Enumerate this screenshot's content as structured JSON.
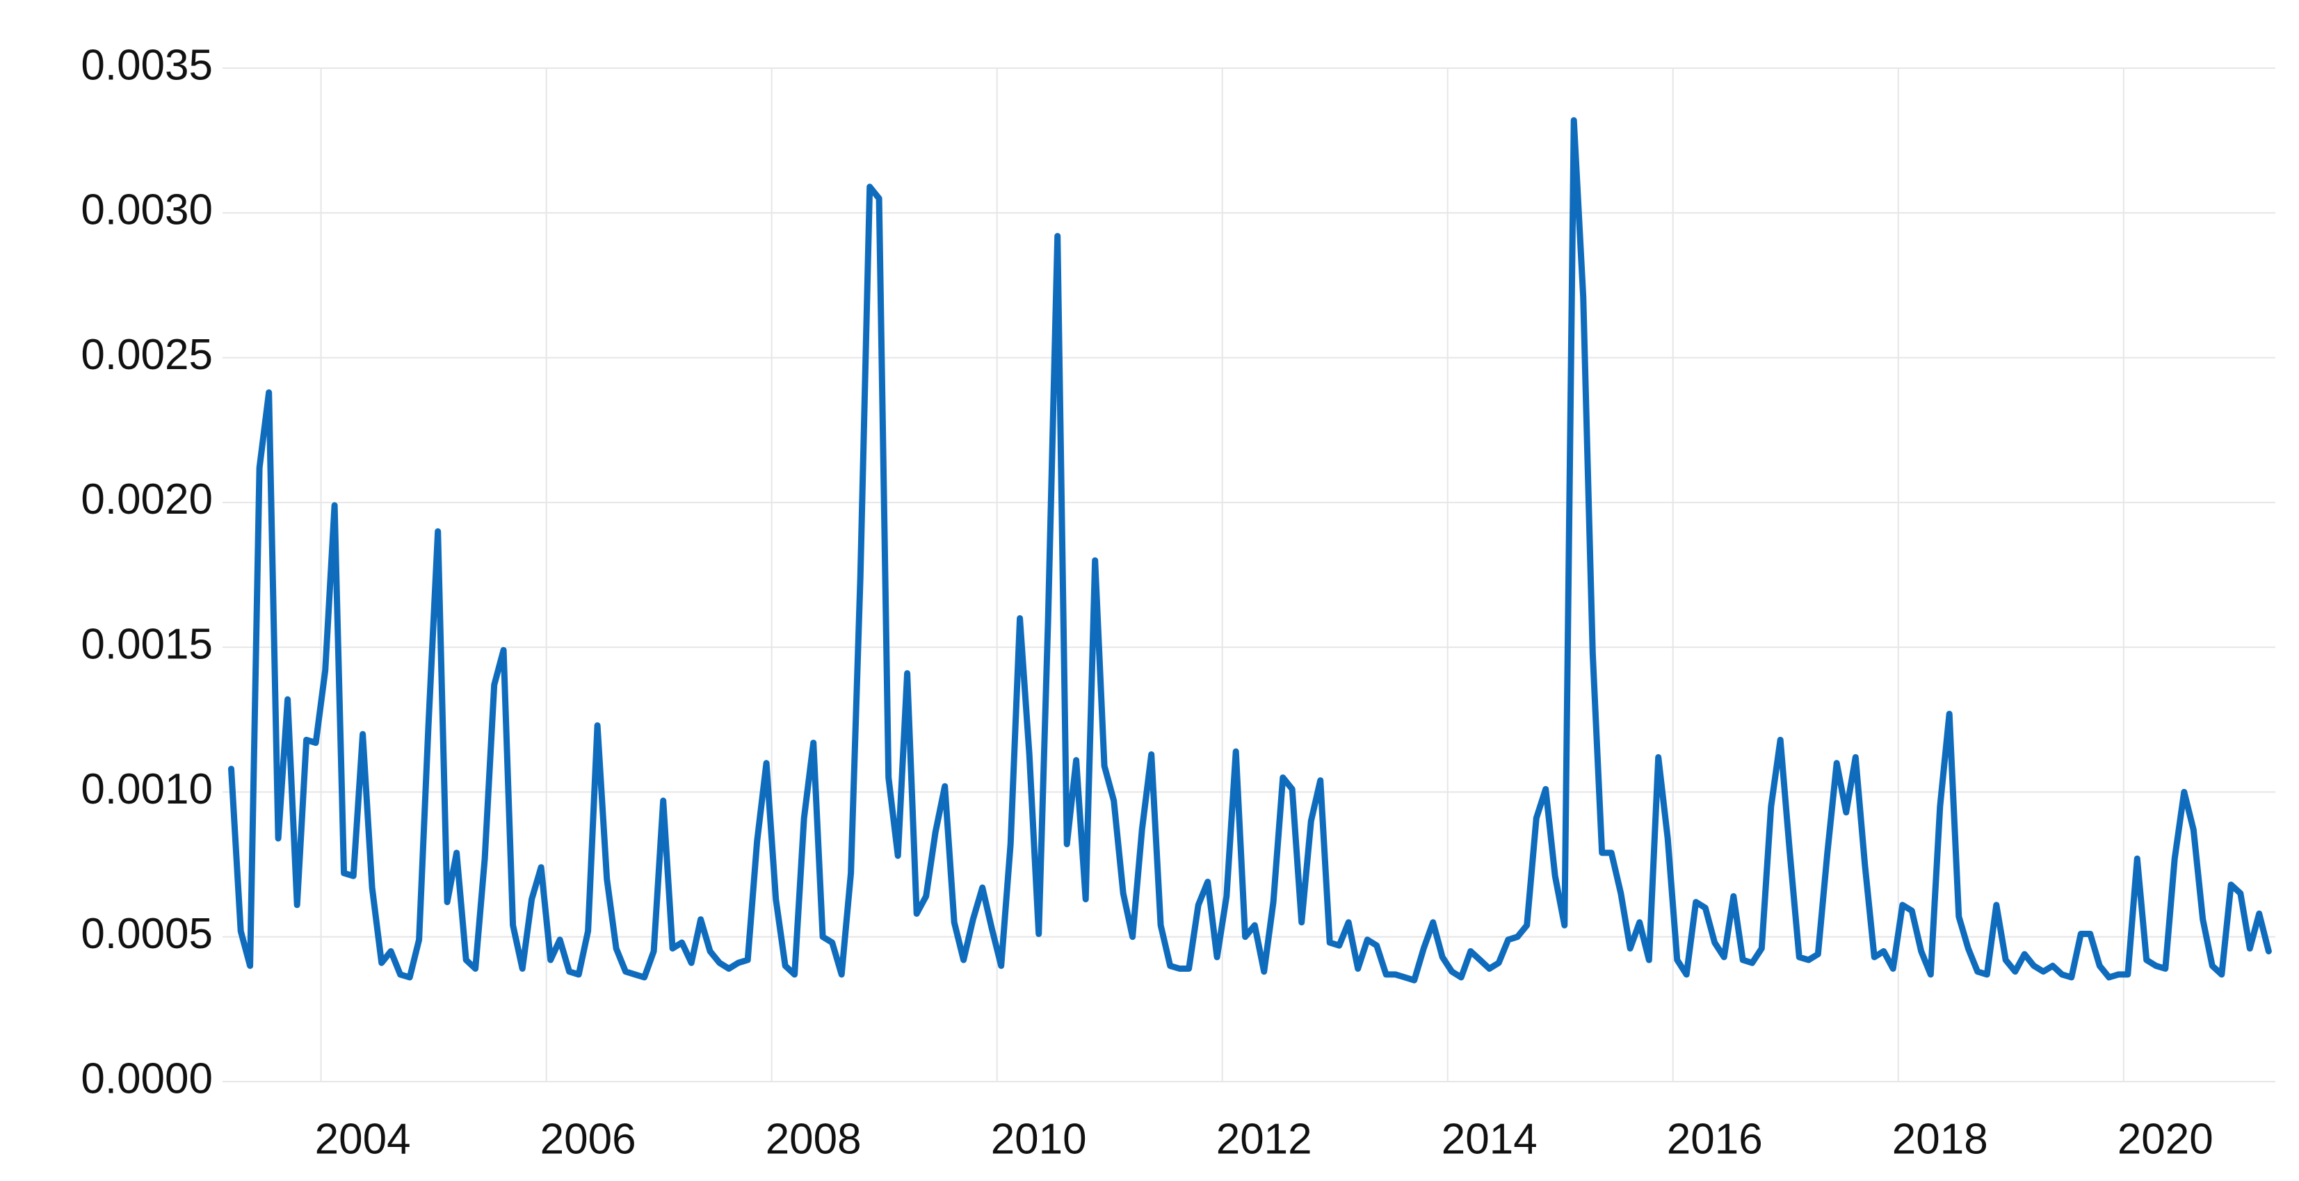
{
  "chart_data": {
    "type": "line",
    "x": [
      2002.833,
      2002.917,
      2003.0,
      2003.083,
      2003.167,
      2003.25,
      2003.333,
      2003.417,
      2003.5,
      2003.583,
      2003.667,
      2003.75,
      2003.833,
      2003.917,
      2004.0,
      2004.083,
      2004.167,
      2004.25,
      2004.333,
      2004.417,
      2004.5,
      2004.583,
      2004.667,
      2004.75,
      2004.833,
      2004.917,
      2005.0,
      2005.083,
      2005.167,
      2005.25,
      2005.333,
      2005.417,
      2005.5,
      2005.583,
      2005.667,
      2005.75,
      2005.833,
      2005.917,
      2006.0,
      2006.083,
      2006.167,
      2006.25,
      2006.333,
      2006.417,
      2006.5,
      2006.583,
      2006.667,
      2006.75,
      2006.833,
      2006.917,
      2007.0,
      2007.083,
      2007.167,
      2007.25,
      2007.333,
      2007.417,
      2007.5,
      2007.583,
      2007.667,
      2007.75,
      2007.833,
      2007.917,
      2008.0,
      2008.083,
      2008.167,
      2008.25,
      2008.333,
      2008.417,
      2008.5,
      2008.583,
      2008.667,
      2008.75,
      2008.833,
      2008.917,
      2009.0,
      2009.083,
      2009.167,
      2009.25,
      2009.333,
      2009.417,
      2009.5,
      2009.583,
      2009.667,
      2009.75,
      2009.833,
      2009.917,
      2010.0,
      2010.083,
      2010.167,
      2010.25,
      2010.333,
      2010.417,
      2010.5,
      2010.583,
      2010.667,
      2010.75,
      2010.833,
      2010.917,
      2011.0,
      2011.083,
      2011.167,
      2011.25,
      2011.333,
      2011.417,
      2011.5,
      2011.583,
      2011.667,
      2011.75,
      2011.833,
      2011.917,
      2012.0,
      2012.083,
      2012.167,
      2012.25,
      2012.333,
      2012.417,
      2012.5,
      2012.583,
      2012.667,
      2012.75,
      2012.833,
      2012.917,
      2013.0,
      2013.083,
      2013.167,
      2013.25,
      2013.333,
      2013.417,
      2013.5,
      2013.583,
      2013.667,
      2013.75,
      2013.833,
      2013.917,
      2014.0,
      2014.083,
      2014.167,
      2014.25,
      2014.333,
      2014.417,
      2014.5,
      2014.583,
      2014.667,
      2014.75,
      2014.833,
      2014.917,
      2015.0,
      2015.083,
      2015.167,
      2015.25,
      2015.333,
      2015.417,
      2015.5,
      2015.583,
      2015.667,
      2015.75,
      2015.833,
      2015.917,
      2016.0,
      2016.083,
      2016.167,
      2016.25,
      2016.333,
      2016.417,
      2016.5,
      2016.583,
      2016.667,
      2016.75,
      2016.833,
      2016.917,
      2017.0,
      2017.083,
      2017.167,
      2017.25,
      2017.333,
      2017.417,
      2017.5,
      2017.583,
      2017.667,
      2017.75,
      2017.833,
      2017.917,
      2018.0,
      2018.083,
      2018.167,
      2018.25,
      2018.333,
      2018.417,
      2018.5,
      2018.583,
      2018.667,
      2018.75,
      2018.833,
      2018.917,
      2019.0,
      2019.083,
      2019.167,
      2019.25,
      2019.333,
      2019.417,
      2019.5,
      2019.583,
      2019.667,
      2019.75,
      2019.833,
      2019.917,
      2020.0,
      2020.083,
      2020.167,
      2020.25,
      2020.333,
      2020.417,
      2020.5,
      2020.583,
      2020.667,
      2020.75,
      2020.833,
      2020.917
    ],
    "values": [
      0.00108,
      0.00052,
      0.0004,
      0.00212,
      0.00238,
      0.00084,
      0.00132,
      0.00061,
      0.00118,
      0.00117,
      0.00142,
      0.00199,
      0.00072,
      0.00071,
      0.0012,
      0.00067,
      0.00041,
      0.00045,
      0.00037,
      0.00036,
      0.00049,
      0.00123,
      0.0019,
      0.00062,
      0.00079,
      0.00042,
      0.00039,
      0.00077,
      0.00137,
      0.00149,
      0.00054,
      0.00039,
      0.00063,
      0.00074,
      0.00042,
      0.00049,
      0.00038,
      0.00037,
      0.00052,
      0.00123,
      0.0007,
      0.00046,
      0.00038,
      0.00037,
      0.00036,
      0.00045,
      0.00097,
      0.00046,
      0.00048,
      0.00041,
      0.00056,
      0.00045,
      0.00041,
      0.00039,
      0.00041,
      0.00042,
      0.00083,
      0.0011,
      0.00063,
      0.0004,
      0.00037,
      0.00091,
      0.00117,
      0.0005,
      0.00048,
      0.00037,
      0.00072,
      0.00174,
      0.00309,
      0.00305,
      0.00105,
      0.00078,
      0.00141,
      0.00058,
      0.00064,
      0.00086,
      0.00102,
      0.00055,
      0.00042,
      0.00056,
      0.00067,
      0.00053,
      0.0004,
      0.00082,
      0.0016,
      0.00113,
      0.00051,
      0.00159,
      0.00292,
      0.00082,
      0.00111,
      0.00063,
      0.0018,
      0.00109,
      0.00097,
      0.00065,
      0.0005,
      0.00087,
      0.00113,
      0.00054,
      0.0004,
      0.00039,
      0.00039,
      0.00061,
      0.00069,
      0.00043,
      0.00064,
      0.00114,
      0.0005,
      0.00054,
      0.00038,
      0.00062,
      0.00105,
      0.00101,
      0.00055,
      0.0009,
      0.00104,
      0.00048,
      0.00047,
      0.00055,
      0.00039,
      0.00049,
      0.00047,
      0.00037,
      0.00037,
      0.00036,
      0.00035,
      0.00046,
      0.00055,
      0.00043,
      0.00038,
      0.00036,
      0.00045,
      0.00042,
      0.00039,
      0.00041,
      0.00049,
      0.0005,
      0.00054,
      0.00091,
      0.00101,
      0.00071,
      0.00054,
      0.00332,
      0.00271,
      0.00148,
      0.00079,
      0.00079,
      0.00065,
      0.00046,
      0.00055,
      0.00042,
      0.00112,
      0.00084,
      0.00042,
      0.00037,
      0.00062,
      0.0006,
      0.00048,
      0.00043,
      0.00064,
      0.00042,
      0.00041,
      0.00046,
      0.00095,
      0.00118,
      0.00079,
      0.00043,
      0.00042,
      0.00044,
      0.00079,
      0.0011,
      0.00093,
      0.00112,
      0.00075,
      0.00043,
      0.00045,
      0.00039,
      0.00061,
      0.00059,
      0.00045,
      0.00037,
      0.00095,
      0.00127,
      0.00057,
      0.00046,
      0.00038,
      0.00037,
      0.00061,
      0.00042,
      0.00038,
      0.00044,
      0.0004,
      0.00038,
      0.0004,
      0.00037,
      0.00036,
      0.00051,
      0.00051,
      0.0004,
      0.00036,
      0.00037,
      0.00037,
      0.00077,
      0.00042,
      0.0004,
      0.00039,
      0.00077,
      0.001,
      0.00087,
      0.00056,
      0.0004,
      0.00037,
      0.00068,
      0.00065,
      0.00046,
      0.00058,
      0.00045
    ],
    "color": "#0f6cbd",
    "xlim": [
      2002.7,
      2021.1
    ],
    "xticks": [
      2004,
      2006,
      2008,
      2010,
      2012,
      2014,
      2016,
      2018,
      2020
    ],
    "ylim": [
      0,
      0.0035
    ],
    "yticks": [
      {
        "value": 0,
        "label": "0.0000"
      },
      {
        "value": 0.0005,
        "label": "0.0005"
      },
      {
        "value": 0.001,
        "label": "0.0010"
      },
      {
        "value": 0.0015,
        "label": "0.0015"
      },
      {
        "value": 0.002,
        "label": "0.0020"
      },
      {
        "value": 0.0025,
        "label": "0.0025"
      },
      {
        "value": 0.003,
        "label": "0.0030"
      },
      {
        "value": 0.0035,
        "label": "0.0035"
      }
    ],
    "grid": true
  }
}
